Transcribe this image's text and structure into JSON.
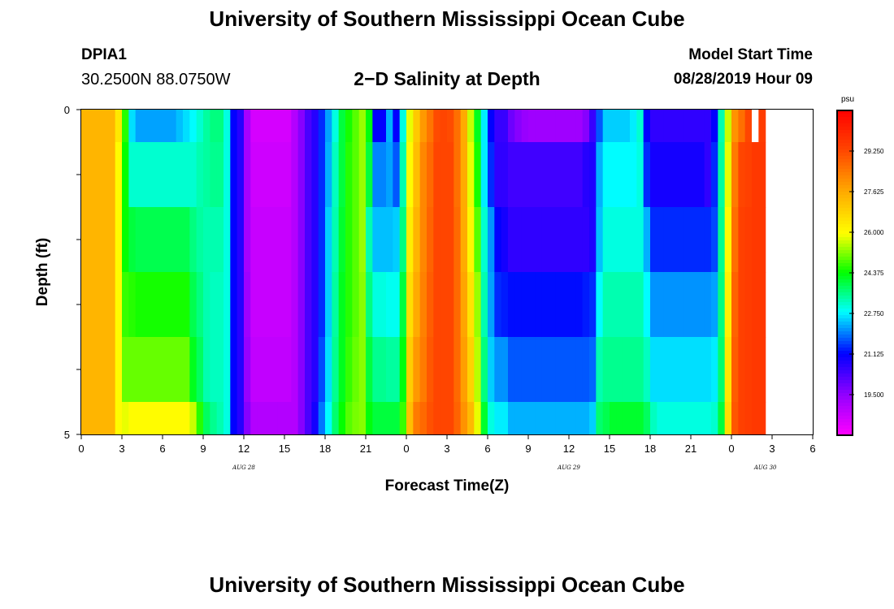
{
  "header": {
    "title": "University of Southern Mississippi Ocean Cube",
    "station_id": "DPIA1",
    "station_location": "30.2500N 88.0750W",
    "plot_title": "2−D Salinity at Depth",
    "model_start_label": "Model Start Time",
    "model_start_value": "08/28/2019 Hour 09"
  },
  "footer": {
    "title": "University of Southern Mississippi Ocean Cube"
  },
  "chart_data": {
    "type": "heatmap",
    "xlabel": "Forecast Time(Z)",
    "ylabel": "Depth (ft)",
    "x_tick_labels": [
      "0",
      "3",
      "6",
      "9",
      "12",
      "15",
      "18",
      "21",
      "0",
      "3",
      "6",
      "9",
      "12",
      "15",
      "18",
      "21",
      "0",
      "3",
      "6"
    ],
    "x_range_hours": [
      0,
      54
    ],
    "x_cell_hours": 0.5,
    "date_labels": [
      {
        "label": "AUG  28",
        "hour": 12
      },
      {
        "label": "AUG  29",
        "hour": 36
      },
      {
        "label": "AUG  30",
        "hour": 50.5
      }
    ],
    "y_tick_labels": [
      "0",
      "5"
    ],
    "y_range_ft": [
      0,
      5
    ],
    "y_minor_ticks_ft": [
      1,
      2,
      3,
      4
    ],
    "depth_layers": [
      {
        "from_ft": 0,
        "to_ft": 0.5
      },
      {
        "from_ft": 0.5,
        "to_ft": 1.5
      },
      {
        "from_ft": 1.5,
        "to_ft": 2.5
      },
      {
        "from_ft": 2.5,
        "to_ft": 3.5
      },
      {
        "from_ft": 3.5,
        "to_ft": 4.5
      },
      {
        "from_ft": 4.5,
        "to_ft": 5
      }
    ],
    "salinity_psu": [
      [
        27.4,
        27.4,
        27.4,
        27.4,
        27.4,
        26.4,
        24.6,
        22.6,
        22.2,
        22.2,
        22.2,
        22.2,
        22.2,
        22.2,
        22.4,
        22.6,
        22.8,
        23.1,
        23.4,
        23.6,
        23.6,
        23.0,
        21.1,
        20.7,
        19.2,
        18.5,
        18.5,
        18.5,
        18.5,
        18.5,
        18.5,
        19.0,
        19.6,
        20.3,
        20.7,
        21.4,
        22.2,
        23.0,
        24.0,
        24.5,
        24.9,
        25.3,
        24.3,
        21.1,
        21.1,
        22.3,
        21.1,
        23.0,
        25.8,
        27.0,
        27.9,
        28.5,
        29.2,
        29.3,
        29.2,
        28.6,
        27.6,
        25.6,
        24.2,
        22.7,
        21.1,
        20.5,
        20.5,
        19.9,
        19.6,
        19.4,
        19.3,
        19.3,
        19.3,
        19.3,
        19.3,
        19.3,
        19.3,
        19.3,
        19.6,
        20.5,
        21.7,
        22.5,
        22.5,
        22.5,
        22.5,
        22.7,
        23.1,
        21.1,
        20.6,
        20.6,
        20.6,
        20.6,
        20.6,
        20.6,
        20.6,
        20.6,
        20.6,
        21.1,
        23.3,
        25.6,
        28.0,
        28.6,
        29.3,
        99,
        29.5
      ],
      [
        27.4,
        27.4,
        27.4,
        27.4,
        27.4,
        26.0,
        24.4,
        23.1,
        23.1,
        23.1,
        23.1,
        23.1,
        23.1,
        23.1,
        23.1,
        23.1,
        23.1,
        23.3,
        23.4,
        23.5,
        23.5,
        23.0,
        21.1,
        20.7,
        19.2,
        18.6,
        18.6,
        18.6,
        18.6,
        18.6,
        18.6,
        19.0,
        19.6,
        20.3,
        20.7,
        21.4,
        22.3,
        23.2,
        24.0,
        24.6,
        24.9,
        25.3,
        24.0,
        22.0,
        22.0,
        22.2,
        21.7,
        23.3,
        26.0,
        27.2,
        28.2,
        28.7,
        29.3,
        29.3,
        29.3,
        28.6,
        27.6,
        25.8,
        24.5,
        22.7,
        21.4,
        20.6,
        20.6,
        20.4,
        20.4,
        20.4,
        20.4,
        20.4,
        20.4,
        20.4,
        20.4,
        20.4,
        20.4,
        20.4,
        20.7,
        20.8,
        22.3,
        22.8,
        22.8,
        22.8,
        22.8,
        22.8,
        23.0,
        21.4,
        20.9,
        20.9,
        20.9,
        20.9,
        20.9,
        20.9,
        20.9,
        20.9,
        20.6,
        21.4,
        23.4,
        25.8,
        28.4,
        29.3,
        29.4,
        29.6,
        29.6
      ],
      [
        27.4,
        27.4,
        27.4,
        27.4,
        27.4,
        26.0,
        24.4,
        24.0,
        23.9,
        23.9,
        23.9,
        23.9,
        23.9,
        23.9,
        23.9,
        23.9,
        23.6,
        23.4,
        23.3,
        23.3,
        23.3,
        23.0,
        21.1,
        20.7,
        19.2,
        18.7,
        18.7,
        18.7,
        18.7,
        18.7,
        18.7,
        19.0,
        19.6,
        20.3,
        20.7,
        21.4,
        22.5,
        23.3,
        24.1,
        24.6,
        24.9,
        25.3,
        23.3,
        22.4,
        22.4,
        22.4,
        22.5,
        23.6,
        26.3,
        27.4,
        28.2,
        28.8,
        29.3,
        29.3,
        29.3,
        28.7,
        27.6,
        26.1,
        24.9,
        23.1,
        22.1,
        21.1,
        20.9,
        20.6,
        20.6,
        20.6,
        20.6,
        20.6,
        20.6,
        20.6,
        20.6,
        20.6,
        20.6,
        20.6,
        20.6,
        20.8,
        22.4,
        23.0,
        23.0,
        23.0,
        23.0,
        23.0,
        23.0,
        22.3,
        21.4,
        21.4,
        21.4,
        21.4,
        21.4,
        21.4,
        21.4,
        21.4,
        21.4,
        21.6,
        23.5,
        26.0,
        28.6,
        29.4,
        29.5,
        29.6,
        29.6
      ],
      [
        27.4,
        27.4,
        27.4,
        27.4,
        27.4,
        26.0,
        24.7,
        24.6,
        24.5,
        24.5,
        24.5,
        24.5,
        24.5,
        24.5,
        24.5,
        24.5,
        23.9,
        23.6,
        23.3,
        23.2,
        23.2,
        23.0,
        21.1,
        20.7,
        19.3,
        18.7,
        18.7,
        18.7,
        18.7,
        18.7,
        18.7,
        19.0,
        19.6,
        20.3,
        20.7,
        21.4,
        22.5,
        23.4,
        24.2,
        24.6,
        24.9,
        25.2,
        23.6,
        23.0,
        23.0,
        22.9,
        22.9,
        24.0,
        26.6,
        27.6,
        28.3,
        28.9,
        29.3,
        29.3,
        29.3,
        28.7,
        27.7,
        26.5,
        25.3,
        23.3,
        22.2,
        21.4,
        21.3,
        21.2,
        21.2,
        21.2,
        21.2,
        21.2,
        21.2,
        21.2,
        21.2,
        21.2,
        21.2,
        21.2,
        21.3,
        21.4,
        22.8,
        23.3,
        23.3,
        23.3,
        23.3,
        23.3,
        23.3,
        22.8,
        22.1,
        22.1,
        22.1,
        22.1,
        22.1,
        22.1,
        22.1,
        22.1,
        22.1,
        22.2,
        23.6,
        26.2,
        28.8,
        29.4,
        29.5,
        29.6,
        29.6
      ],
      [
        27.4,
        27.4,
        27.4,
        27.4,
        27.4,
        26.0,
        25.0,
        25.0,
        25.0,
        25.0,
        25.0,
        25.0,
        25.0,
        25.0,
        25.0,
        25.0,
        24.2,
        23.8,
        23.3,
        23.2,
        23.2,
        23.0,
        21.1,
        20.7,
        19.4,
        18.8,
        18.8,
        18.8,
        18.8,
        18.8,
        18.8,
        19.0,
        19.6,
        20.3,
        20.7,
        21.6,
        22.6,
        23.5,
        24.2,
        24.7,
        25.0,
        25.2,
        24.0,
        23.5,
        23.5,
        23.4,
        23.4,
        24.3,
        26.9,
        27.9,
        28.4,
        29.0,
        29.3,
        29.3,
        29.3,
        28.7,
        27.8,
        26.8,
        25.5,
        23.6,
        22.5,
        22.1,
        22.1,
        21.7,
        21.7,
        21.7,
        21.7,
        21.7,
        21.7,
        21.7,
        21.7,
        21.7,
        21.7,
        21.7,
        21.7,
        21.8,
        23.3,
        23.5,
        23.5,
        23.5,
        23.5,
        23.5,
        23.5,
        23.2,
        22.6,
        22.6,
        22.6,
        22.6,
        22.6,
        22.6,
        22.6,
        22.6,
        22.6,
        22.7,
        23.7,
        26.4,
        28.9,
        29.4,
        29.5,
        29.6,
        29.6
      ],
      [
        27.4,
        27.4,
        27.4,
        27.4,
        27.4,
        26.0,
        25.8,
        26.0,
        26.0,
        26.0,
        26.0,
        26.0,
        26.0,
        26.0,
        26.0,
        26.0,
        25.6,
        24.6,
        23.8,
        23.5,
        23.3,
        23.0,
        21.1,
        20.7,
        19.6,
        19.0,
        19.0,
        19.0,
        19.0,
        19.0,
        19.0,
        19.0,
        19.6,
        20.3,
        20.9,
        21.9,
        22.8,
        23.7,
        24.4,
        24.9,
        25.1,
        25.2,
        24.3,
        24.0,
        24.0,
        24.0,
        24.0,
        24.7,
        27.2,
        28.4,
        28.7,
        29.1,
        29.3,
        29.3,
        29.3,
        28.8,
        28.0,
        27.3,
        25.8,
        24.1,
        23.0,
        22.7,
        22.7,
        22.3,
        22.3,
        22.3,
        22.3,
        22.3,
        22.3,
        22.3,
        22.3,
        22.3,
        22.3,
        22.3,
        22.3,
        22.5,
        23.7,
        23.9,
        24.1,
        24.1,
        24.1,
        24.1,
        24.1,
        23.8,
        23.2,
        23.0,
        23.0,
        23.0,
        23.0,
        23.0,
        23.0,
        23.0,
        23.0,
        23.1,
        24.0,
        26.6,
        29.0,
        29.4,
        29.5,
        29.6,
        29.6
      ]
    ],
    "missing_value": 99,
    "colorbar": {
      "unit": "psu",
      "min": 17.875,
      "max": 30.875,
      "tick_labels": [
        "19.500",
        "21.125",
        "22.750",
        "24.375",
        "26.000",
        "27.625",
        "29.250"
      ],
      "tick_values": [
        19.5,
        21.125,
        22.75,
        24.375,
        26.0,
        27.625,
        29.25
      ]
    }
  }
}
